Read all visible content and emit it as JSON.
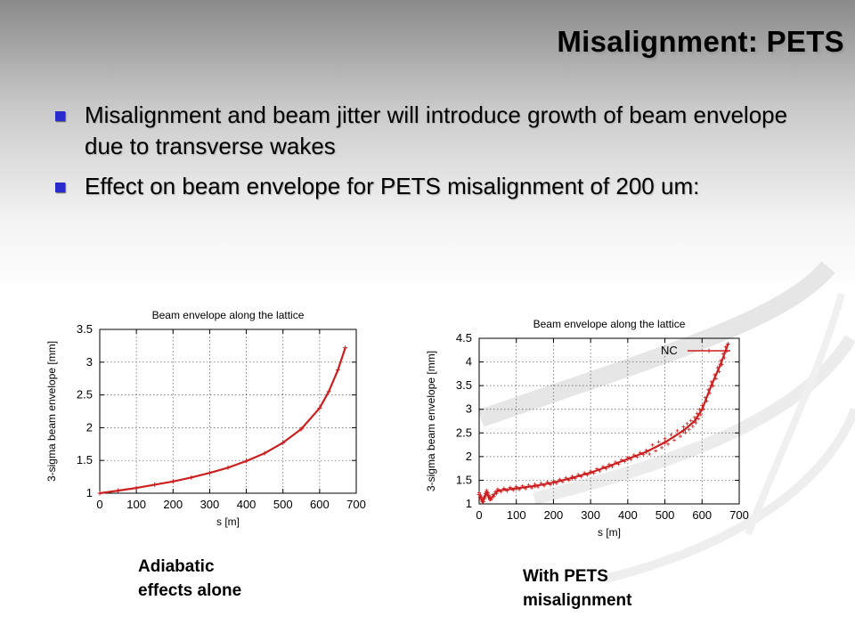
{
  "slide": {
    "title": "Misalignment: PETS",
    "bullets": [
      "Misalignment and beam jitter will introduce growth of beam envelope due to transverse wakes",
      "Effect on beam envelope for PETS misalignment of 200 um:"
    ],
    "captions": [
      "Adiabatic\neffects alone",
      "With PETS\nmisalignment"
    ],
    "bullet_color": "#2a2acc",
    "series_color": "#cc1f1f"
  },
  "chart_data": [
    {
      "type": "line",
      "title": "Beam envelope along the lattice",
      "xlabel": "s [m]",
      "ylabel": "3-sigma beam envelope [mm]",
      "xlim": [
        0,
        700
      ],
      "ylim": [
        1,
        3.5
      ],
      "xticks": [
        "0",
        "100",
        "200",
        "300",
        "400",
        "500",
        "600",
        "700"
      ],
      "yticks": [
        "1",
        "1.5",
        "2",
        "2.5",
        "3",
        "3.5"
      ],
      "grid": true,
      "legend": null,
      "series": [
        {
          "x": [
            0,
            50,
            100,
            150,
            200,
            250,
            300,
            350,
            400,
            450,
            500,
            550,
            600,
            625,
            650,
            670
          ],
          "y": [
            1.0,
            1.04,
            1.08,
            1.13,
            1.18,
            1.24,
            1.31,
            1.39,
            1.49,
            1.61,
            1.77,
            1.98,
            2.3,
            2.55,
            2.88,
            3.22
          ]
        }
      ]
    },
    {
      "type": "line",
      "title": "Beam envelope along the lattice",
      "xlabel": "s [m]",
      "ylabel": "3-sigma beam envelope [mm]",
      "xlim": [
        0,
        700
      ],
      "ylim": [
        1,
        4.5
      ],
      "xticks": [
        "0",
        "100",
        "200",
        "300",
        "400",
        "500",
        "600",
        "700"
      ],
      "yticks": [
        "1",
        "1.5",
        "2",
        "2.5",
        "3",
        "3.5",
        "4",
        "4.5"
      ],
      "grid": true,
      "legend": "top-right",
      "series": [
        {
          "name": "NC",
          "x": [
            0,
            10,
            20,
            30,
            50,
            100,
            150,
            200,
            250,
            300,
            350,
            400,
            450,
            500,
            550,
            580,
            600,
            625,
            650,
            670
          ],
          "y": [
            1.2,
            1.05,
            1.25,
            1.1,
            1.28,
            1.33,
            1.38,
            1.45,
            1.55,
            1.66,
            1.8,
            1.95,
            2.1,
            2.3,
            2.55,
            2.75,
            3.0,
            3.5,
            3.95,
            4.38
          ]
        }
      ]
    }
  ]
}
